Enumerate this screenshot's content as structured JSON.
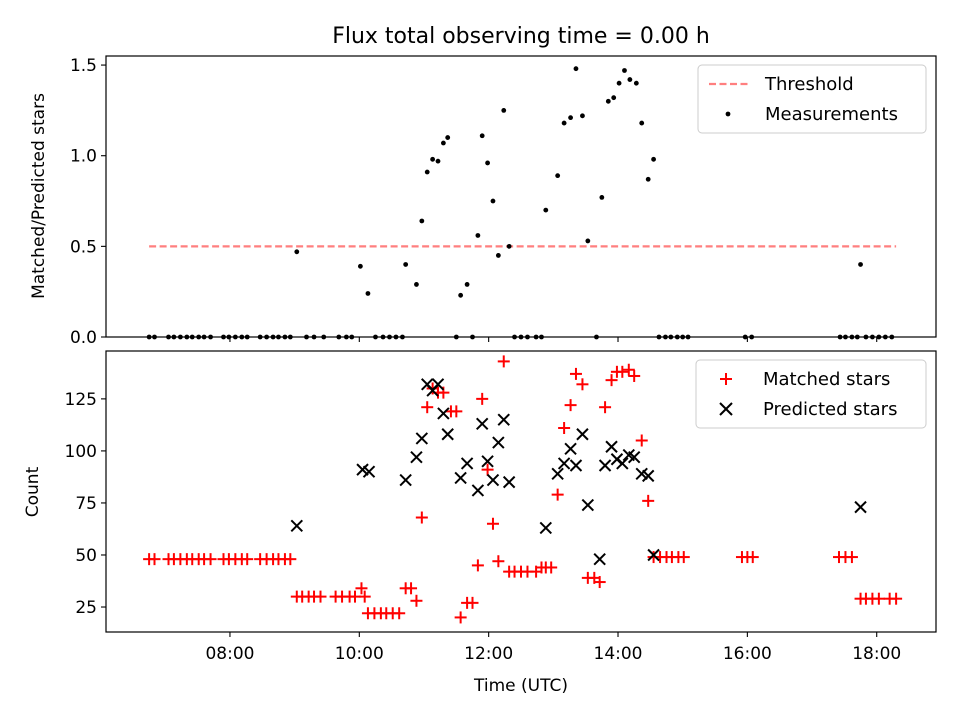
{
  "chart_data": [
    {
      "type": "scatter",
      "title": "Flux total observing time = 0.00 h",
      "xlabel": "",
      "ylabel": "Matched/Predicted stars",
      "xlim": [
        "06:05",
        "18:55"
      ],
      "ylim": [
        0,
        1.55
      ],
      "yticks": [
        0.0,
        0.5,
        1.0,
        1.5
      ],
      "ytick_labels": [
        "0.0",
        "0.5",
        "1.0",
        "1.5"
      ],
      "grid": false,
      "legend_position": "top-right",
      "series": [
        {
          "name": "Threshold",
          "kind": "line",
          "style": "dashed",
          "color": "#ff7f7f",
          "points": [
            [
              "06:45",
              0.5
            ],
            [
              "18:18",
              0.5
            ]
          ]
        },
        {
          "name": "Measurements",
          "kind": "scatter",
          "marker": "dot",
          "color": "#000000",
          "points": [
            [
              "06:45",
              0
            ],
            [
              "06:50",
              0
            ],
            [
              "07:03",
              0
            ],
            [
              "07:08",
              0
            ],
            [
              "07:14",
              0
            ],
            [
              "07:20",
              0
            ],
            [
              "07:25",
              0
            ],
            [
              "07:31",
              0
            ],
            [
              "07:36",
              0
            ],
            [
              "07:42",
              0
            ],
            [
              "07:54",
              0
            ],
            [
              "07:59",
              0
            ],
            [
              "08:05",
              0
            ],
            [
              "08:11",
              0
            ],
            [
              "08:16",
              0
            ],
            [
              "08:28",
              0
            ],
            [
              "08:34",
              0
            ],
            [
              "08:40",
              0
            ],
            [
              "08:45",
              0
            ],
            [
              "08:51",
              0
            ],
            [
              "08:56",
              0
            ],
            [
              "09:02",
              0.47
            ],
            [
              "09:11",
              0
            ],
            [
              "09:18",
              0
            ],
            [
              "09:27",
              0
            ],
            [
              "09:41",
              0
            ],
            [
              "09:48",
              0
            ],
            [
              "09:53",
              0
            ],
            [
              "10:01",
              0.39
            ],
            [
              "10:08",
              0.24
            ],
            [
              "10:15",
              0
            ],
            [
              "10:22",
              0
            ],
            [
              "10:28",
              0
            ],
            [
              "10:34",
              0
            ],
            [
              "10:40",
              0
            ],
            [
              "10:43",
              0.4
            ],
            [
              "10:53",
              0.29
            ],
            [
              "10:58",
              0.64
            ],
            [
              "11:03",
              0.91
            ],
            [
              "11:08",
              0.98
            ],
            [
              "11:13",
              0.97
            ],
            [
              "11:18",
              1.07
            ],
            [
              "11:22",
              1.1
            ],
            [
              "11:30",
              0
            ],
            [
              "11:34",
              0.23
            ],
            [
              "11:40",
              0.29
            ],
            [
              "11:45",
              0
            ],
            [
              "11:50",
              0.56
            ],
            [
              "11:54",
              1.11
            ],
            [
              "11:59",
              0.96
            ],
            [
              "12:04",
              0.75
            ],
            [
              "12:09",
              0.45
            ],
            [
              "12:14",
              1.25
            ],
            [
              "12:19",
              0.5
            ],
            [
              "12:24",
              0
            ],
            [
              "12:30",
              0
            ],
            [
              "12:36",
              0
            ],
            [
              "12:44",
              0
            ],
            [
              "12:49",
              0
            ],
            [
              "12:53",
              0.7
            ],
            [
              "13:04",
              0.89
            ],
            [
              "13:10",
              1.18
            ],
            [
              "13:16",
              1.21
            ],
            [
              "13:21",
              1.48
            ],
            [
              "13:27",
              1.22
            ],
            [
              "13:32",
              0.53
            ],
            [
              "13:40",
              0
            ],
            [
              "13:45",
              0.77
            ],
            [
              "13:51",
              1.3
            ],
            [
              "13:56",
              1.32
            ],
            [
              "14:01",
              1.4
            ],
            [
              "14:06",
              1.47
            ],
            [
              "14:11",
              1.42
            ],
            [
              "14:17",
              1.4
            ],
            [
              "14:22",
              1.18
            ],
            [
              "14:28",
              0.87
            ],
            [
              "14:33",
              0.98
            ],
            [
              "14:38",
              0
            ],
            [
              "14:44",
              0
            ],
            [
              "14:49",
              0
            ],
            [
              "14:55",
              0
            ],
            [
              "15:00",
              0
            ],
            [
              "15:05",
              0
            ],
            [
              "15:58",
              0
            ],
            [
              "16:04",
              0
            ],
            [
              "17:26",
              0
            ],
            [
              "17:31",
              0
            ],
            [
              "17:37",
              0
            ],
            [
              "17:42",
              0
            ],
            [
              "17:45",
              0.4
            ],
            [
              "17:50",
              0
            ],
            [
              "17:56",
              0
            ],
            [
              "18:02",
              0
            ],
            [
              "18:08",
              0
            ],
            [
              "18:14",
              0
            ]
          ]
        }
      ]
    },
    {
      "type": "scatter",
      "title": "",
      "xlabel": "Time (UTC)",
      "ylabel": "Count",
      "xlim": [
        "06:05",
        "18:55"
      ],
      "ylim": [
        13,
        148
      ],
      "yticks": [
        25,
        50,
        75,
        100,
        125
      ],
      "ytick_labels": [
        "25",
        "50",
        "75",
        "100",
        "125"
      ],
      "xticks": [
        "08:00",
        "10:00",
        "12:00",
        "14:00",
        "16:00",
        "18:00"
      ],
      "xtick_labels": [
        "08:00",
        "10:00",
        "12:00",
        "14:00",
        "16:00",
        "18:00"
      ],
      "grid": false,
      "legend_position": "top-right",
      "series": [
        {
          "name": "Matched stars",
          "kind": "scatter",
          "marker": "plus",
          "color": "#ff0000",
          "points": [
            [
              "06:45",
              48
            ],
            [
              "06:50",
              48
            ],
            [
              "07:03",
              48
            ],
            [
              "07:08",
              48
            ],
            [
              "07:14",
              48
            ],
            [
              "07:20",
              48
            ],
            [
              "07:25",
              48
            ],
            [
              "07:31",
              48
            ],
            [
              "07:36",
              48
            ],
            [
              "07:42",
              48
            ],
            [
              "07:54",
              48
            ],
            [
              "07:59",
              48
            ],
            [
              "08:05",
              48
            ],
            [
              "08:11",
              48
            ],
            [
              "08:16",
              48
            ],
            [
              "08:28",
              48
            ],
            [
              "08:34",
              48
            ],
            [
              "08:40",
              48
            ],
            [
              "08:45",
              48
            ],
            [
              "08:51",
              48
            ],
            [
              "08:56",
              48
            ],
            [
              "09:02",
              30
            ],
            [
              "09:07",
              30
            ],
            [
              "09:13",
              30
            ],
            [
              "09:18",
              30
            ],
            [
              "09:24",
              30
            ],
            [
              "09:38",
              30
            ],
            [
              "09:44",
              30
            ],
            [
              "09:51",
              30
            ],
            [
              "09:56",
              30
            ],
            [
              "10:02",
              34
            ],
            [
              "10:05",
              30
            ],
            [
              "10:08",
              22
            ],
            [
              "10:14",
              22
            ],
            [
              "10:20",
              22
            ],
            [
              "10:25",
              22
            ],
            [
              "10:31",
              22
            ],
            [
              "10:37",
              22
            ],
            [
              "10:43",
              34
            ],
            [
              "10:48",
              34
            ],
            [
              "10:53",
              28
            ],
            [
              "10:58",
              68
            ],
            [
              "11:03",
              121
            ],
            [
              "11:08",
              130
            ],
            [
              "11:13",
              128
            ],
            [
              "11:18",
              128
            ],
            [
              "11:25",
              119
            ],
            [
              "11:30",
              119
            ],
            [
              "11:34",
              20
            ],
            [
              "11:40",
              27
            ],
            [
              "11:45",
              27
            ],
            [
              "11:50",
              45
            ],
            [
              "11:54",
              125
            ],
            [
              "11:59",
              91
            ],
            [
              "12:04",
              65
            ],
            [
              "12:09",
              47
            ],
            [
              "12:14",
              143
            ],
            [
              "12:19",
              42
            ],
            [
              "12:24",
              42
            ],
            [
              "12:30",
              42
            ],
            [
              "12:36",
              42
            ],
            [
              "12:44",
              42
            ],
            [
              "12:49",
              44
            ],
            [
              "12:53",
              44
            ],
            [
              "12:58",
              44
            ],
            [
              "13:04",
              79
            ],
            [
              "13:10",
              111
            ],
            [
              "13:16",
              122
            ],
            [
              "13:21",
              137
            ],
            [
              "13:27",
              132
            ],
            [
              "13:32",
              39
            ],
            [
              "13:38",
              39
            ],
            [
              "13:43",
              37
            ],
            [
              "13:48",
              121
            ],
            [
              "13:54",
              134
            ],
            [
              "13:59",
              138
            ],
            [
              "14:04",
              138
            ],
            [
              "14:10",
              139
            ],
            [
              "14:15",
              136
            ],
            [
              "14:22",
              105
            ],
            [
              "14:28",
              76
            ],
            [
              "14:33",
              49
            ],
            [
              "14:39",
              49
            ],
            [
              "14:45",
              49
            ],
            [
              "14:50",
              49
            ],
            [
              "14:56",
              49
            ],
            [
              "15:01",
              49
            ],
            [
              "15:55",
              49
            ],
            [
              "16:00",
              49
            ],
            [
              "16:05",
              49
            ],
            [
              "17:25",
              49
            ],
            [
              "17:31",
              49
            ],
            [
              "17:37",
              49
            ],
            [
              "17:45",
              29
            ],
            [
              "17:50",
              29
            ],
            [
              "17:56",
              29
            ],
            [
              "18:02",
              29
            ],
            [
              "18:12",
              29
            ],
            [
              "18:18",
              29
            ]
          ]
        },
        {
          "name": "Predicted stars",
          "kind": "scatter",
          "marker": "x",
          "color": "#000000",
          "points": [
            [
              "09:02",
              64
            ],
            [
              "10:03",
              91
            ],
            [
              "10:09",
              90
            ],
            [
              "10:43",
              86
            ],
            [
              "10:53",
              97
            ],
            [
              "10:58",
              106
            ],
            [
              "11:03",
              132
            ],
            [
              "11:08",
              129
            ],
            [
              "11:13",
              132
            ],
            [
              "11:18",
              118
            ],
            [
              "11:22",
              108
            ],
            [
              "11:34",
              87
            ],
            [
              "11:40",
              94
            ],
            [
              "11:50",
              81
            ],
            [
              "11:54",
              113
            ],
            [
              "11:59",
              95
            ],
            [
              "12:04",
              86
            ],
            [
              "12:09",
              104
            ],
            [
              "12:14",
              115
            ],
            [
              "12:19",
              85
            ],
            [
              "12:53",
              63
            ],
            [
              "13:04",
              89
            ],
            [
              "13:10",
              94
            ],
            [
              "13:16",
              101
            ],
            [
              "13:21",
              93
            ],
            [
              "13:27",
              108
            ],
            [
              "13:32",
              74
            ],
            [
              "13:43",
              48
            ],
            [
              "13:48",
              93
            ],
            [
              "13:54",
              102
            ],
            [
              "13:59",
              96
            ],
            [
              "14:04",
              94
            ],
            [
              "14:10",
              98
            ],
            [
              "14:15",
              97
            ],
            [
              "14:22",
              89
            ],
            [
              "14:28",
              88
            ],
            [
              "14:33",
              50
            ],
            [
              "17:45",
              73
            ]
          ]
        }
      ]
    }
  ]
}
